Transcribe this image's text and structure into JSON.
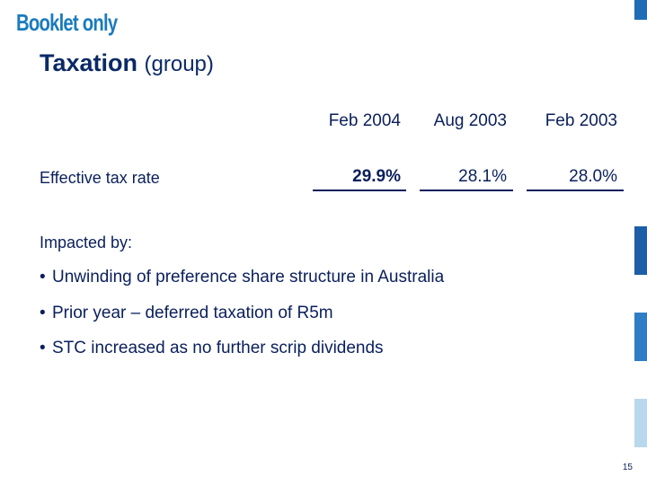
{
  "header": {
    "booklet": "Booklet only"
  },
  "title": {
    "main": "Taxation",
    "sub": "(group)"
  },
  "table": {
    "columns": [
      "Feb 2004",
      "Aug 2003",
      "Feb 2003"
    ],
    "row_label": "Effective tax rate",
    "values": [
      "29.9%",
      "28.1%",
      "28.0%"
    ]
  },
  "impact": {
    "heading": "Impacted by:",
    "bullets": [
      "Unwinding of preference share structure in Australia",
      "Prior year – deferred taxation of R5m",
      "STC increased as no further scrip dividends"
    ]
  },
  "footer": {
    "page_number": "15"
  },
  "colors": {
    "accent": "#1f6db5",
    "text": "#0a1f5c",
    "booklet": "#1a7bbd"
  }
}
